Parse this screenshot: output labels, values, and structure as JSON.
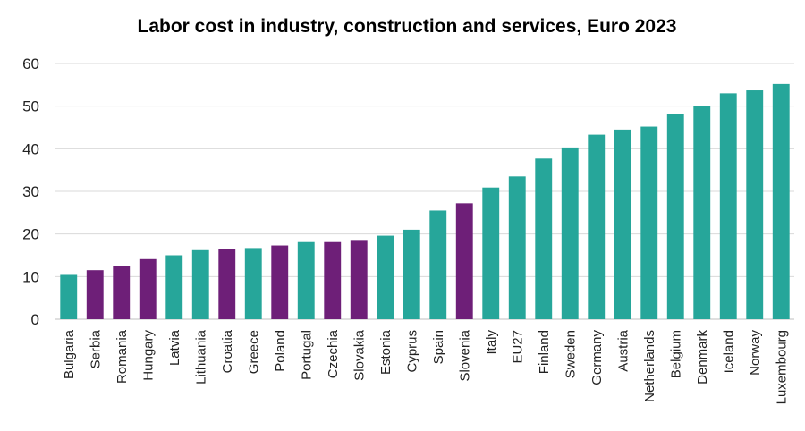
{
  "chart_data": {
    "type": "bar",
    "title": "Labor cost in industry, construction and services, Euro 2023",
    "xlabel": "",
    "ylabel": "",
    "ylim": [
      0,
      60
    ],
    "yticks": [
      0,
      10,
      20,
      30,
      40,
      50,
      60
    ],
    "grid": true,
    "legend": "none",
    "colors": {
      "default": "#26a69a",
      "highlight": "#6e1f78",
      "grid": "#d9d9d9",
      "axis": "#bfbfbf"
    },
    "categories": [
      "Bulgaria",
      "Serbia",
      "Romania",
      "Hungary",
      "Latvia",
      "Lithuania",
      "Croatia",
      "Greece",
      "Poland",
      "Portugal",
      "Czechia",
      "Slovakia",
      "Estonia",
      "Cyprus",
      "Spain",
      "Slovenia",
      "Italy",
      "EU27",
      "Finland",
      "Sweden",
      "Germany",
      "Austria",
      "Netherlands",
      "Belgium",
      "Denmark",
      "Iceland",
      "Norway",
      "Luxembourg"
    ],
    "values": [
      10.6,
      11.5,
      12.5,
      14.1,
      15.0,
      16.2,
      16.5,
      16.7,
      17.3,
      18.1,
      18.1,
      18.6,
      19.6,
      21.0,
      25.5,
      27.2,
      30.9,
      33.5,
      37.7,
      40.3,
      43.3,
      44.5,
      45.2,
      48.2,
      50.1,
      53.0,
      53.7,
      55.2
    ],
    "highlighted": [
      "Serbia",
      "Romania",
      "Hungary",
      "Croatia",
      "Poland",
      "Czechia",
      "Slovakia",
      "Slovenia"
    ]
  }
}
